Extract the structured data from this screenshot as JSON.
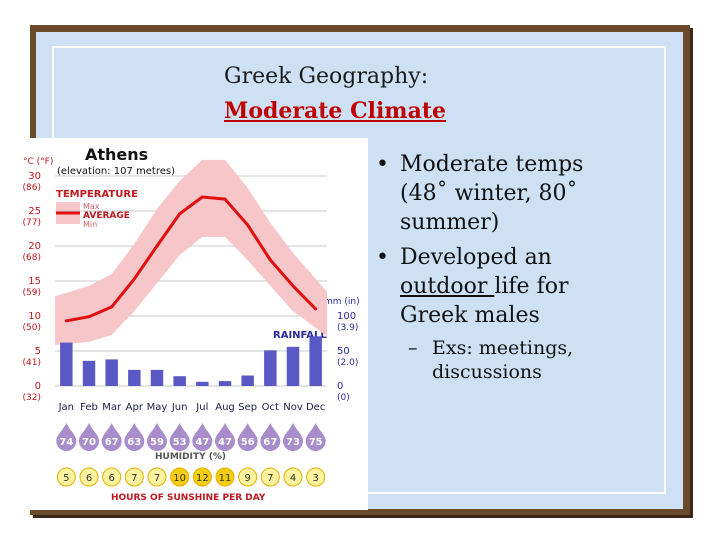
{
  "slide": {
    "title_line1": "Greek Geography:",
    "title_line2": "Moderate Climate",
    "bullets": [
      {
        "parts": [
          "Moderate temps",
          "(48˚ winter, 80˚",
          "summer)"
        ]
      },
      {
        "pre": "Developed an",
        "underlined": "outdoor ",
        "post": "life for",
        "last": "Greek males"
      }
    ],
    "sub_bullet": [
      "Exs: meetings,",
      "discussions"
    ]
  },
  "chart_data": {
    "type": "climate-chart",
    "title": "Athens",
    "subtitle": "(elevation: 107 metres)",
    "categories": [
      "Jan",
      "Feb",
      "Mar",
      "Apr",
      "May",
      "Jun",
      "Jul",
      "Aug",
      "Sep",
      "Oct",
      "Nov",
      "Dec"
    ],
    "temperature": {
      "label": "TEMPERATURE",
      "legend": [
        "Max",
        "AVERAGE",
        "Min"
      ],
      "unit_label": "°C (°F)",
      "ylim": [
        0,
        30
      ],
      "ticks": [
        {
          "c": "30",
          "f": "(86)"
        },
        {
          "c": "25",
          "f": "(77)"
        },
        {
          "c": "20",
          "f": "(68)"
        },
        {
          "c": "15",
          "f": "(59)"
        },
        {
          "c": "10",
          "f": "(50)"
        },
        {
          "c": "5",
          "f": "(41)"
        },
        {
          "c": "0",
          "f": "(32)"
        }
      ],
      "average": [
        9.3,
        9.9,
        11.3,
        15.3,
        20.0,
        24.6,
        27.0,
        26.7,
        23.0,
        18.0,
        14.3,
        11.0
      ],
      "max": [
        13.3,
        14.3,
        16.0,
        20.3,
        25.3,
        29.3,
        32.3,
        32.3,
        28.3,
        23.3,
        19.0,
        15.3
      ],
      "min": [
        6.0,
        6.3,
        7.3,
        10.7,
        14.7,
        18.7,
        21.3,
        21.3,
        18.0,
        14.3,
        10.7,
        8.3
      ]
    },
    "rainfall": {
      "label": "RAINFALL",
      "unit_label": "mm (in)",
      "ylim": [
        0,
        100
      ],
      "ticks": [
        {
          "mm": "100",
          "in": "(3.9)"
        },
        {
          "mm": "50",
          "in": "(2.0)"
        },
        {
          "mm": "0",
          "in": "(0)"
        }
      ],
      "values": [
        62,
        36,
        38,
        23,
        23,
        14,
        6,
        7,
        15,
        51,
        56,
        71
      ]
    },
    "humidity": {
      "label": "HUMIDITY (%)",
      "values": [
        "74",
        "70",
        "67",
        "63",
        "59",
        "53",
        "47",
        "47",
        "56",
        "67",
        "73",
        "75"
      ]
    },
    "sunshine": {
      "label": "HOURS OF SUNSHINE PER DAY",
      "values": [
        "5",
        "6",
        "6",
        "7",
        "7",
        "10",
        "12",
        "11",
        "9",
        "7",
        "4",
        "3"
      ]
    },
    "colors": {
      "average_line": "#e01010",
      "band": "#f6c6c8",
      "rain_bar": "#5a58c4",
      "humidity_drop": "#a88ccc",
      "sunshine_low": "#fff3a0",
      "sunshine_high": "#f4cc10",
      "label_red": "#c0181c",
      "label_blue": "#2a2a9a"
    }
  }
}
